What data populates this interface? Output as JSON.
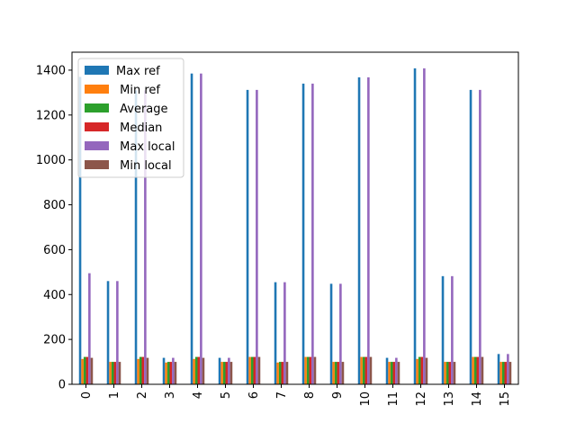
{
  "chart_data": {
    "type": "bar",
    "categories": [
      "0",
      "1",
      "2",
      "3",
      "4",
      "5",
      "6",
      "7",
      "8",
      "9",
      "10",
      "11",
      "12",
      "13",
      "14",
      "15"
    ],
    "series": [
      {
        "name": "Max ref",
        "color": "#1f77b4",
        "values": [
          1370,
          460,
          1310,
          118,
          1385,
          118,
          1312,
          455,
          1340,
          448,
          1368,
          118,
          1408,
          482,
          1312,
          135
        ]
      },
      {
        "name": " Min ref",
        "color": "#ff7f0e",
        "values": [
          113,
          100,
          113,
          97,
          113,
          100,
          122,
          97,
          122,
          100,
          122,
          100,
          113,
          100,
          122,
          100
        ]
      },
      {
        "name": " Average",
        "color": "#2ca02c",
        "values": [
          122,
          100,
          122,
          100,
          122,
          100,
          122,
          100,
          122,
          100,
          122,
          100,
          122,
          100,
          122,
          100
        ]
      },
      {
        "name": " Median",
        "color": "#d62728",
        "values": [
          122,
          100,
          122,
          100,
          122,
          100,
          122,
          100,
          122,
          100,
          122,
          100,
          122,
          100,
          122,
          100
        ]
      },
      {
        "name": " Max local",
        "color": "#9467bd",
        "values": [
          495,
          460,
          1310,
          118,
          1385,
          118,
          1312,
          455,
          1340,
          448,
          1368,
          118,
          1408,
          482,
          1312,
          135
        ]
      },
      {
        "name": " Min local",
        "color": "#8c564b",
        "values": [
          118,
          100,
          118,
          100,
          118,
          100,
          122,
          100,
          122,
          100,
          122,
          100,
          118,
          100,
          122,
          100
        ]
      }
    ],
    "yticks": [
      0,
      200,
      400,
      600,
      800,
      1000,
      1200,
      1400
    ],
    "ylim": [
      0,
      1480
    ],
    "legend_position": "upper-left",
    "grid": false
  }
}
